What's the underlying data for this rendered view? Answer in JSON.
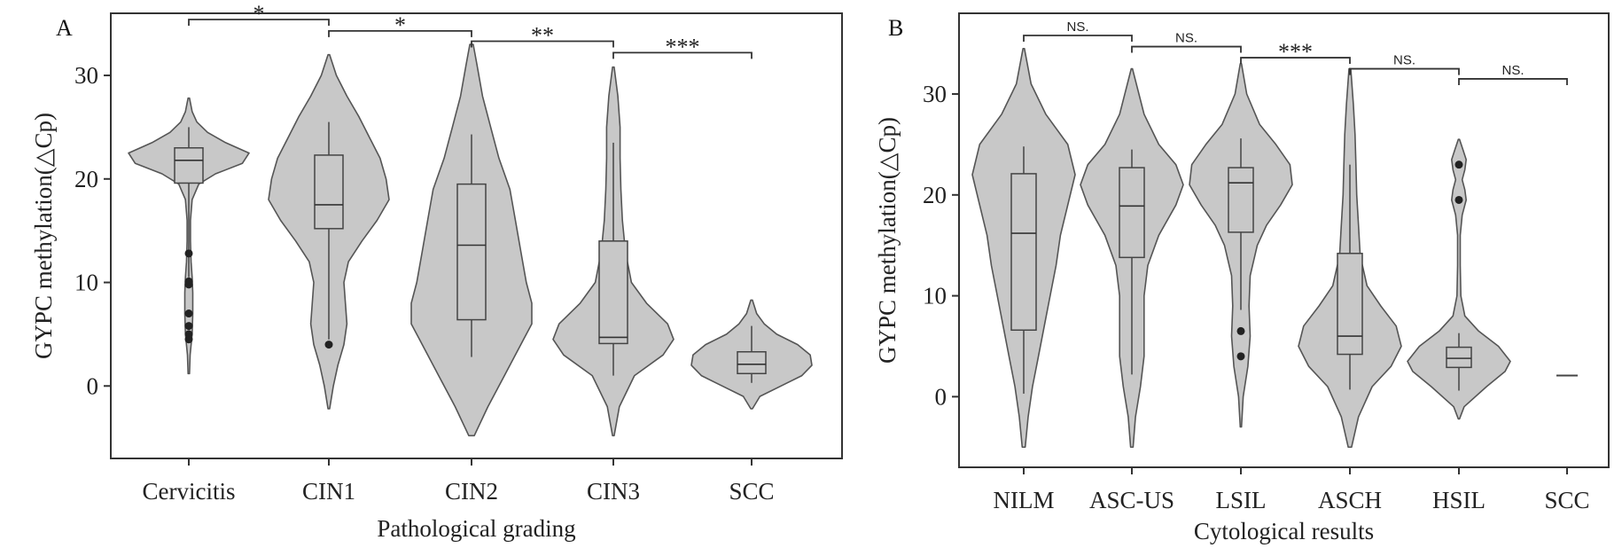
{
  "chart_data": [
    {
      "panel_label": "A",
      "type": "violin",
      "xlabel": "Pathological grading",
      "ylabel": "GYPC methylation(△Cp)",
      "ylim": [
        -7,
        36
      ],
      "yticks": [
        0,
        10,
        20,
        30
      ],
      "ytick_labels": [
        "0",
        "10",
        "20",
        "30"
      ],
      "categories": [
        "Cervicitis",
        "CIN1",
        "CIN2",
        "CIN3",
        "SCC"
      ],
      "violins": [
        {
          "min": 1.2,
          "max": 27.8,
          "density": [
            [
              1.2,
              0.01
            ],
            [
              3,
              0.02
            ],
            [
              5,
              0.05
            ],
            [
              7,
              0.06
            ],
            [
              9,
              0.06
            ],
            [
              10.5,
              0.05
            ],
            [
              12,
              0.035
            ],
            [
              14,
              0.025
            ],
            [
              16,
              0.025
            ],
            [
              18,
              0.05
            ],
            [
              19.5,
              0.15
            ],
            [
              20.5,
              0.4
            ],
            [
              21.5,
              0.8
            ],
            [
              22.5,
              0.9
            ],
            [
              23.5,
              0.55
            ],
            [
              24.5,
              0.28
            ],
            [
              25.5,
              0.12
            ],
            [
              26.5,
              0.05
            ],
            [
              27.8,
              0.01
            ]
          ],
          "box": {
            "q1": 19.6,
            "median": 21.8,
            "q3": 23.0,
            "wlo": 10.5,
            "whi": 25.0
          },
          "outliers": [
            4.5,
            5.0,
            5.8,
            7.0,
            9.8,
            10.1,
            12.8
          ]
        },
        {
          "min": -2.2,
          "max": 32.0,
          "density": [
            [
              -2.2,
              0.005
            ],
            [
              0,
              0.03
            ],
            [
              2,
              0.06
            ],
            [
              4,
              0.1
            ],
            [
              6,
              0.12
            ],
            [
              8,
              0.11
            ],
            [
              10,
              0.1
            ],
            [
              12,
              0.13
            ],
            [
              14,
              0.22
            ],
            [
              16,
              0.32
            ],
            [
              18,
              0.4
            ],
            [
              20,
              0.38
            ],
            [
              22,
              0.34
            ],
            [
              24,
              0.27
            ],
            [
              26,
              0.2
            ],
            [
              28,
              0.12
            ],
            [
              30,
              0.05
            ],
            [
              32,
              0.005
            ]
          ],
          "box": {
            "q1": 15.2,
            "median": 17.5,
            "q3": 22.3,
            "wlo": 4.5,
            "whi": 25.5
          },
          "outliers": [
            4.0
          ]
        },
        {
          "min": -4.8,
          "max": 33.0,
          "density": [
            [
              -4.8,
              0.005
            ],
            [
              -2,
              0.03
            ],
            [
              1,
              0.06
            ],
            [
              4,
              0.09
            ],
            [
              6,
              0.11
            ],
            [
              8,
              0.11
            ],
            [
              10,
              0.1
            ],
            [
              13,
              0.09
            ],
            [
              16,
              0.08
            ],
            [
              19,
              0.07
            ],
            [
              22,
              0.05
            ],
            [
              25,
              0.035
            ],
            [
              28,
              0.02
            ],
            [
              31,
              0.01
            ],
            [
              33,
              0.003
            ]
          ],
          "box": {
            "q1": 6.4,
            "median": 13.6,
            "q3": 19.5,
            "wlo": 2.8,
            "whi": 24.3
          },
          "outliers": []
        },
        {
          "min": -4.8,
          "max": 30.8,
          "density": [
            [
              -4.8,
              0.005
            ],
            [
              -2,
              0.04
            ],
            [
              1,
              0.14
            ],
            [
              3,
              0.33
            ],
            [
              4.5,
              0.4
            ],
            [
              6,
              0.36
            ],
            [
              8,
              0.22
            ],
            [
              10,
              0.12
            ],
            [
              13,
              0.08
            ],
            [
              16,
              0.06
            ],
            [
              19,
              0.05
            ],
            [
              22,
              0.045
            ],
            [
              25,
              0.045
            ],
            [
              28,
              0.03
            ],
            [
              30.8,
              0.005
            ]
          ],
          "box": {
            "q1": 4.1,
            "median": 4.7,
            "q3": 14.0,
            "wlo": 1.0,
            "whi": 23.5
          },
          "outliers": []
        },
        {
          "min": -2.2,
          "max": 8.3,
          "density": [
            [
              -2.2,
              0.01
            ],
            [
              -1,
              0.1
            ],
            [
              0,
              0.35
            ],
            [
              1,
              0.6
            ],
            [
              2,
              0.72
            ],
            [
              3,
              0.7
            ],
            [
              4,
              0.55
            ],
            [
              5,
              0.3
            ],
            [
              6,
              0.15
            ],
            [
              7,
              0.06
            ],
            [
              8.3,
              0.01
            ]
          ],
          "box": {
            "q1": 1.2,
            "median": 2.1,
            "q3": 3.3,
            "wlo": 0.3,
            "whi": 5.8
          },
          "outliers": []
        }
      ],
      "comparisons": [
        {
          "from": 0,
          "to": 1,
          "label": "*",
          "y": 35.4
        },
        {
          "from": 1,
          "to": 2,
          "label": "*",
          "y": 34.3
        },
        {
          "from": 2,
          "to": 3,
          "label": "**",
          "y": 33.3
        },
        {
          "from": 3,
          "to": 4,
          "label": "***",
          "y": 32.2
        }
      ]
    },
    {
      "panel_label": "B",
      "type": "violin",
      "xlabel": "Cytological results",
      "ylabel": "GYPC methylation(△Cp)",
      "ylim": [
        -7,
        38
      ],
      "yticks": [
        0,
        10,
        20,
        30
      ],
      "ytick_labels": [
        "0",
        "10",
        "20",
        "30"
      ],
      "categories": [
        "NILM",
        "ASC-US",
        "LSIL",
        "ASCH",
        "HSIL",
        "SCC"
      ],
      "violins": [
        {
          "min": -5.0,
          "max": 34.5,
          "density": [
            [
              -5,
              0.01
            ],
            [
              -2,
              0.03
            ],
            [
              1,
              0.06
            ],
            [
              4,
              0.1
            ],
            [
              7,
              0.14
            ],
            [
              10,
              0.18
            ],
            [
              13,
              0.22
            ],
            [
              16,
              0.25
            ],
            [
              19,
              0.3
            ],
            [
              22,
              0.35
            ],
            [
              25,
              0.3
            ],
            [
              28,
              0.15
            ],
            [
              31,
              0.05
            ],
            [
              34.5,
              0.005
            ]
          ],
          "box": {
            "q1": 6.6,
            "median": 16.2,
            "q3": 22.1,
            "wlo": 0.3,
            "whi": 24.8
          },
          "outliers": []
        },
        {
          "min": -5.0,
          "max": 32.5,
          "density": [
            [
              -5,
              0.01
            ],
            [
              -2,
              0.03
            ],
            [
              1,
              0.07
            ],
            [
              4,
              0.1
            ],
            [
              7,
              0.1
            ],
            [
              10,
              0.1
            ],
            [
              13,
              0.13
            ],
            [
              16,
              0.22
            ],
            [
              19,
              0.36
            ],
            [
              21,
              0.42
            ],
            [
              23,
              0.36
            ],
            [
              25,
              0.22
            ],
            [
              28,
              0.1
            ],
            [
              32.5,
              0.005
            ]
          ],
          "box": {
            "q1": 13.8,
            "median": 18.9,
            "q3": 22.7,
            "wlo": 2.2,
            "whi": 24.5
          },
          "outliers": []
        },
        {
          "min": -3.0,
          "max": 33.0,
          "density": [
            [
              -3,
              0.005
            ],
            [
              0,
              0.02
            ],
            [
              3,
              0.06
            ],
            [
              6,
              0.08
            ],
            [
              9,
              0.07
            ],
            [
              12,
              0.08
            ],
            [
              15,
              0.14
            ],
            [
              17,
              0.22
            ],
            [
              19,
              0.34
            ],
            [
              21,
              0.44
            ],
            [
              23,
              0.42
            ],
            [
              25,
              0.3
            ],
            [
              27,
              0.16
            ],
            [
              30,
              0.05
            ],
            [
              33,
              0.005
            ]
          ],
          "box": {
            "q1": 16.3,
            "median": 21.2,
            "q3": 22.7,
            "wlo": 8.6,
            "whi": 25.6
          },
          "outliers": [
            4.0,
            6.5
          ]
        },
        {
          "min": -5.0,
          "max": 32.5,
          "density": [
            [
              -5,
              0.01
            ],
            [
              -2,
              0.05
            ],
            [
              1,
              0.13
            ],
            [
              3,
              0.24
            ],
            [
              5,
              0.3
            ],
            [
              7,
              0.27
            ],
            [
              9,
              0.18
            ],
            [
              11,
              0.1
            ],
            [
              14,
              0.06
            ],
            [
              17,
              0.05
            ],
            [
              20,
              0.04
            ],
            [
              23,
              0.035
            ],
            [
              26,
              0.03
            ],
            [
              29,
              0.02
            ],
            [
              32.5,
              0.005
            ]
          ],
          "box": {
            "q1": 4.2,
            "median": 6.0,
            "q3": 14.2,
            "wlo": 0.7,
            "whi": 23.0
          },
          "outliers": []
        },
        {
          "min": -2.2,
          "max": 25.5,
          "density": [
            [
              -2.2,
              0.01
            ],
            [
              -1,
              0.08
            ],
            [
              1,
              0.42
            ],
            [
              2.5,
              0.7
            ],
            [
              3.5,
              0.78
            ],
            [
              5,
              0.6
            ],
            [
              6.5,
              0.3
            ],
            [
              8,
              0.09
            ],
            [
              10,
              0.03
            ],
            [
              13,
              0.02
            ],
            [
              16,
              0.02
            ],
            [
              18,
              0.05
            ],
            [
              19.5,
              0.11
            ],
            [
              20.5,
              0.09
            ],
            [
              21.5,
              0.05
            ],
            [
              22.5,
              0.09
            ],
            [
              23.5,
              0.11
            ],
            [
              24.5,
              0.06
            ],
            [
              25.5,
              0.01
            ]
          ],
          "box": {
            "q1": 2.9,
            "median": 3.8,
            "q3": 4.9,
            "wlo": 0.6,
            "whi": 6.3
          },
          "outliers": [
            19.5,
            23.0
          ]
        },
        {
          "min": 2.1,
          "max": 2.1,
          "density": [],
          "box": null,
          "outliers": [],
          "single_value": 2.1
        }
      ],
      "comparisons": [
        {
          "from": 0,
          "to": 1,
          "label": "NS.",
          "y": 35.8
        },
        {
          "from": 1,
          "to": 2,
          "label": "NS.",
          "y": 34.7
        },
        {
          "from": 2,
          "to": 3,
          "label": "***",
          "y": 33.6
        },
        {
          "from": 3,
          "to": 4,
          "label": "NS.",
          "y": 32.5
        },
        {
          "from": 4,
          "to": 5,
          "label": "NS.",
          "y": 31.5
        }
      ]
    }
  ]
}
